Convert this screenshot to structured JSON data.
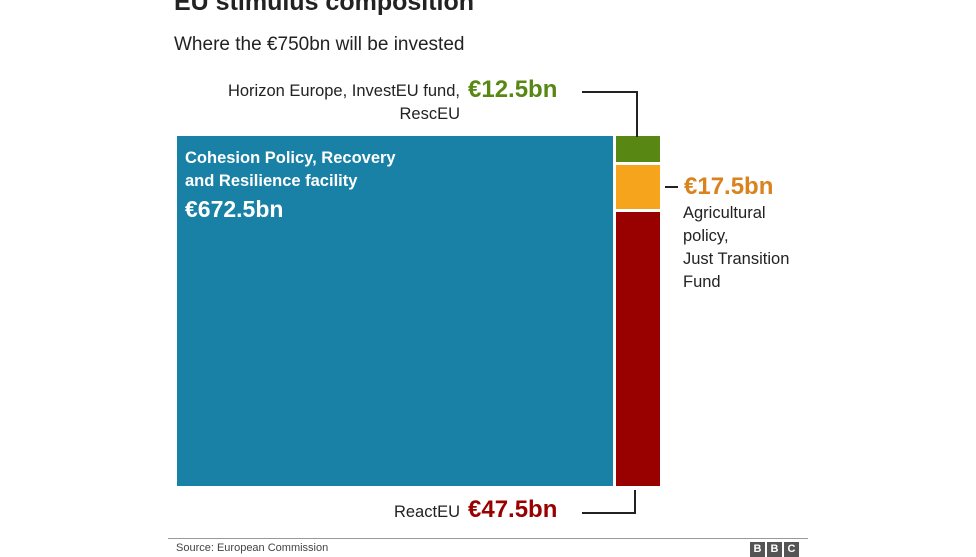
{
  "header": {
    "title": "EU stimulus composition",
    "subtitle": "Where the €750bn will be invested"
  },
  "chart_data": {
    "type": "treemap",
    "title": "EU stimulus composition",
    "subtitle": "Where the €750bn will be invested",
    "total": 750,
    "unit": "€bn",
    "segments": [
      {
        "label_lines": [
          "Cohesion Policy, Recovery",
          "and Resilience facility"
        ],
        "value": 672.5,
        "value_label": "€672.5bn",
        "color": "#1a81a6"
      },
      {
        "label_lines": [
          "Horizon Europe, InvestEU fund,",
          "RescEU"
        ],
        "value": 12.5,
        "value_label": "€12.5bn",
        "color": "#588713"
      },
      {
        "label_lines": [
          "Agricultural",
          "policy,",
          "Just Transition",
          "Fund"
        ],
        "value": 17.5,
        "value_label": "€17.5bn",
        "color": "#f6a41b"
      },
      {
        "label_lines": [
          "ReactEU"
        ],
        "value": 47.5,
        "value_label": "€47.5bn",
        "color": "#990000"
      }
    ]
  },
  "colors": {
    "cohesion": "#1a81a6",
    "horizon": "#588713",
    "agricultural": "#f6a41b",
    "reacteu": "#990000",
    "horizon_text": "#588713",
    "agricultural_text": "#d9821e",
    "reacteu_text": "#990000"
  },
  "footer": {
    "source": "Source: European Commission",
    "logo_letters": [
      "B",
      "B",
      "C"
    ]
  }
}
